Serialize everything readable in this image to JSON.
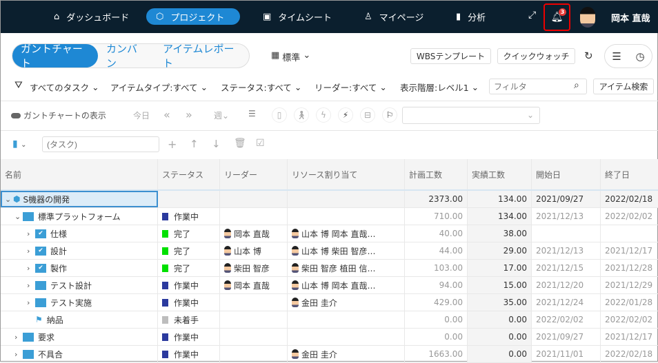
{
  "nav": {
    "items": [
      {
        "label": "ダッシュボード",
        "icon": "home-icon"
      },
      {
        "label": "プロジェクト",
        "icon": "cube-icon",
        "active": true
      },
      {
        "label": "タイムシート",
        "icon": "timesheet-icon"
      },
      {
        "label": "マイページ",
        "icon": "person-icon"
      },
      {
        "label": "分析",
        "icon": "chart-icon"
      }
    ],
    "notification_count": "3",
    "user_name": "岡本 直哉"
  },
  "view_tabs": [
    "ガントチャート",
    "カンバン",
    "アイテムレポート"
  ],
  "layout_select": "標準",
  "buttons": {
    "wbs": "WBSテンプレート",
    "quick_watch": "クイックウォッチ",
    "item_search": "アイテム検索"
  },
  "filters": [
    "すべてのタスク",
    "アイテムタイプ:すべて",
    "ステータス:すべて",
    "リーダー:すべて",
    "表示階層:レベル1"
  ],
  "filter_placeholder": "フィルタ",
  "toolbar": {
    "gantt_toggle": "ガントチャートの表示",
    "today": "今日",
    "week": "週"
  },
  "task_placeholder": "(タスク)",
  "table": {
    "columns": [
      "名前",
      "ステータス",
      "リーダー",
      "リソース割り当て",
      "計画工数",
      "実績工数",
      "開始日",
      "終了日"
    ],
    "rows": [
      {
        "name": "S機器の開発",
        "status": "",
        "leader": "",
        "resources": "",
        "planned": "2373.00",
        "actual": "134.00",
        "start": "2021/09/27",
        "end": "2022/02/18"
      },
      {
        "name": "標準プラットフォーム",
        "status": "作業中",
        "leader": "",
        "resources": "",
        "planned": "710.00",
        "actual": "134.00",
        "start": "2021/12/13",
        "end": "2022/02/02"
      },
      {
        "name": "仕様",
        "status": "完了",
        "leader": "岡本 直哉",
        "resources": "山本 博 岡本 直哉…",
        "planned": "40.00",
        "actual": "38.00",
        "start": "",
        "end": ""
      },
      {
        "name": "設計",
        "status": "完了",
        "leader": "山本 博",
        "resources": "山本 博 柴田 智彦…",
        "planned": "44.00",
        "actual": "29.00",
        "start": "2021/12/13",
        "end": "2021/12/17"
      },
      {
        "name": "製作",
        "status": "完了",
        "leader": "柴田 智彦",
        "resources": "柴田 智彦 植田 信…",
        "planned": "103.00",
        "actual": "17.00",
        "start": "2021/12/15",
        "end": "2021/12/28"
      },
      {
        "name": "テスト設計",
        "status": "作業中",
        "leader": "岡本 直哉",
        "resources": "山本 博 岡本 直哉…",
        "planned": "94.00",
        "actual": "15.00",
        "start": "2021/12/20",
        "end": "2021/12/29"
      },
      {
        "name": "テスト実施",
        "status": "作業中",
        "leader": "",
        "resources": "金田 圭介",
        "planned": "429.00",
        "actual": "35.00",
        "start": "2021/12/24",
        "end": "2022/01/28"
      },
      {
        "name": "納品",
        "status": "未着手",
        "leader": "",
        "resources": "",
        "planned": "0.00",
        "actual": "0.00",
        "start": "2022/02/02",
        "end": "2022/02/02"
      },
      {
        "name": "要求",
        "status": "作業中",
        "leader": "",
        "resources": "",
        "planned": "0.00",
        "actual": "0.00",
        "start": "2021/09/27",
        "end": "2021/12/17"
      },
      {
        "name": "不具合",
        "status": "作業中",
        "leader": "",
        "resources": "金田 圭介",
        "planned": "1663.00",
        "actual": "0.00",
        "start": "2021/11/01",
        "end": "2022/02/18"
      }
    ]
  },
  "status_colors": {
    "作業中": "#2b3a9e",
    "完了": "#00e000",
    "未着手": "#bdbdbd"
  },
  "accent": "#1e88d4"
}
